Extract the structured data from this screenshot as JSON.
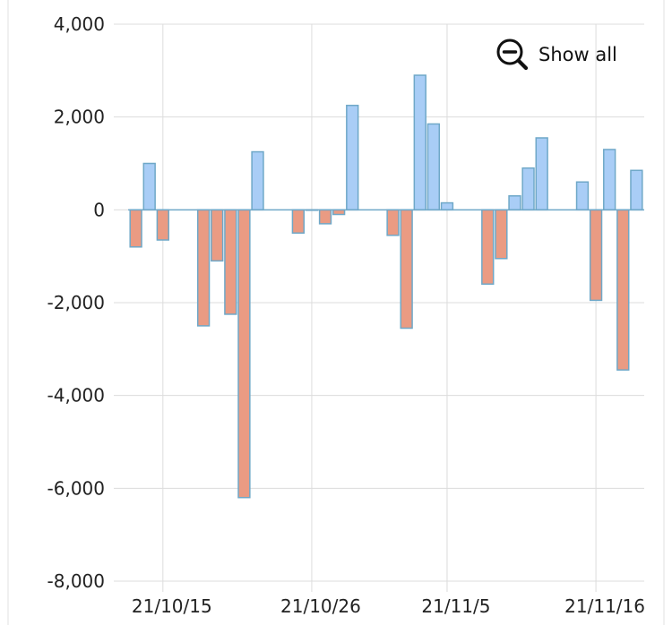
{
  "controls": {
    "show_all_label": "Show all",
    "show_all_icon": "zoom-out-icon"
  },
  "colors": {
    "positive_fill": "#a9cdf6",
    "negative_fill": "#ea9b83",
    "bar_stroke": "#6fa8c8"
  },
  "chart_data": {
    "type": "bar",
    "title": "",
    "xlabel": "",
    "ylabel": "",
    "ylim": [
      -8000,
      4000
    ],
    "yticks": [
      4000,
      2000,
      0,
      -2000,
      -4000,
      -6000,
      -8000
    ],
    "ytick_labels": [
      "4,000",
      "2,000",
      "0",
      "-2,000",
      "-4,000",
      "-6,000",
      "-8,000"
    ],
    "xtick_labels": [
      "21/10/15",
      "21/10/26",
      "21/11/5",
      "21/11/16"
    ],
    "grid": true,
    "x": [
      "2021-10-13",
      "2021-10-14",
      "2021-10-15",
      "2021-10-18",
      "2021-10-19",
      "2021-10-20",
      "2021-10-21",
      "2021-10-22",
      "2021-10-25",
      "2021-10-26",
      "2021-10-27",
      "2021-10-28",
      "2021-10-29",
      "2021-11-01",
      "2021-11-02",
      "2021-11-03",
      "2021-11-04",
      "2021-11-05",
      "2021-11-08",
      "2021-11-09",
      "2021-11-10",
      "2021-11-11",
      "2021-11-12",
      "2021-11-15",
      "2021-11-16",
      "2021-11-17",
      "2021-11-18",
      "2021-11-19"
    ],
    "values": [
      -800,
      1000,
      -650,
      -2500,
      -1100,
      -2250,
      -6200,
      1250,
      -500,
      0,
      -300,
      -100,
      2250,
      -550,
      -2550,
      2900,
      1850,
      150,
      -1600,
      -1050,
      300,
      900,
      1550,
      600,
      -1950,
      1300,
      -3450,
      850
    ]
  }
}
